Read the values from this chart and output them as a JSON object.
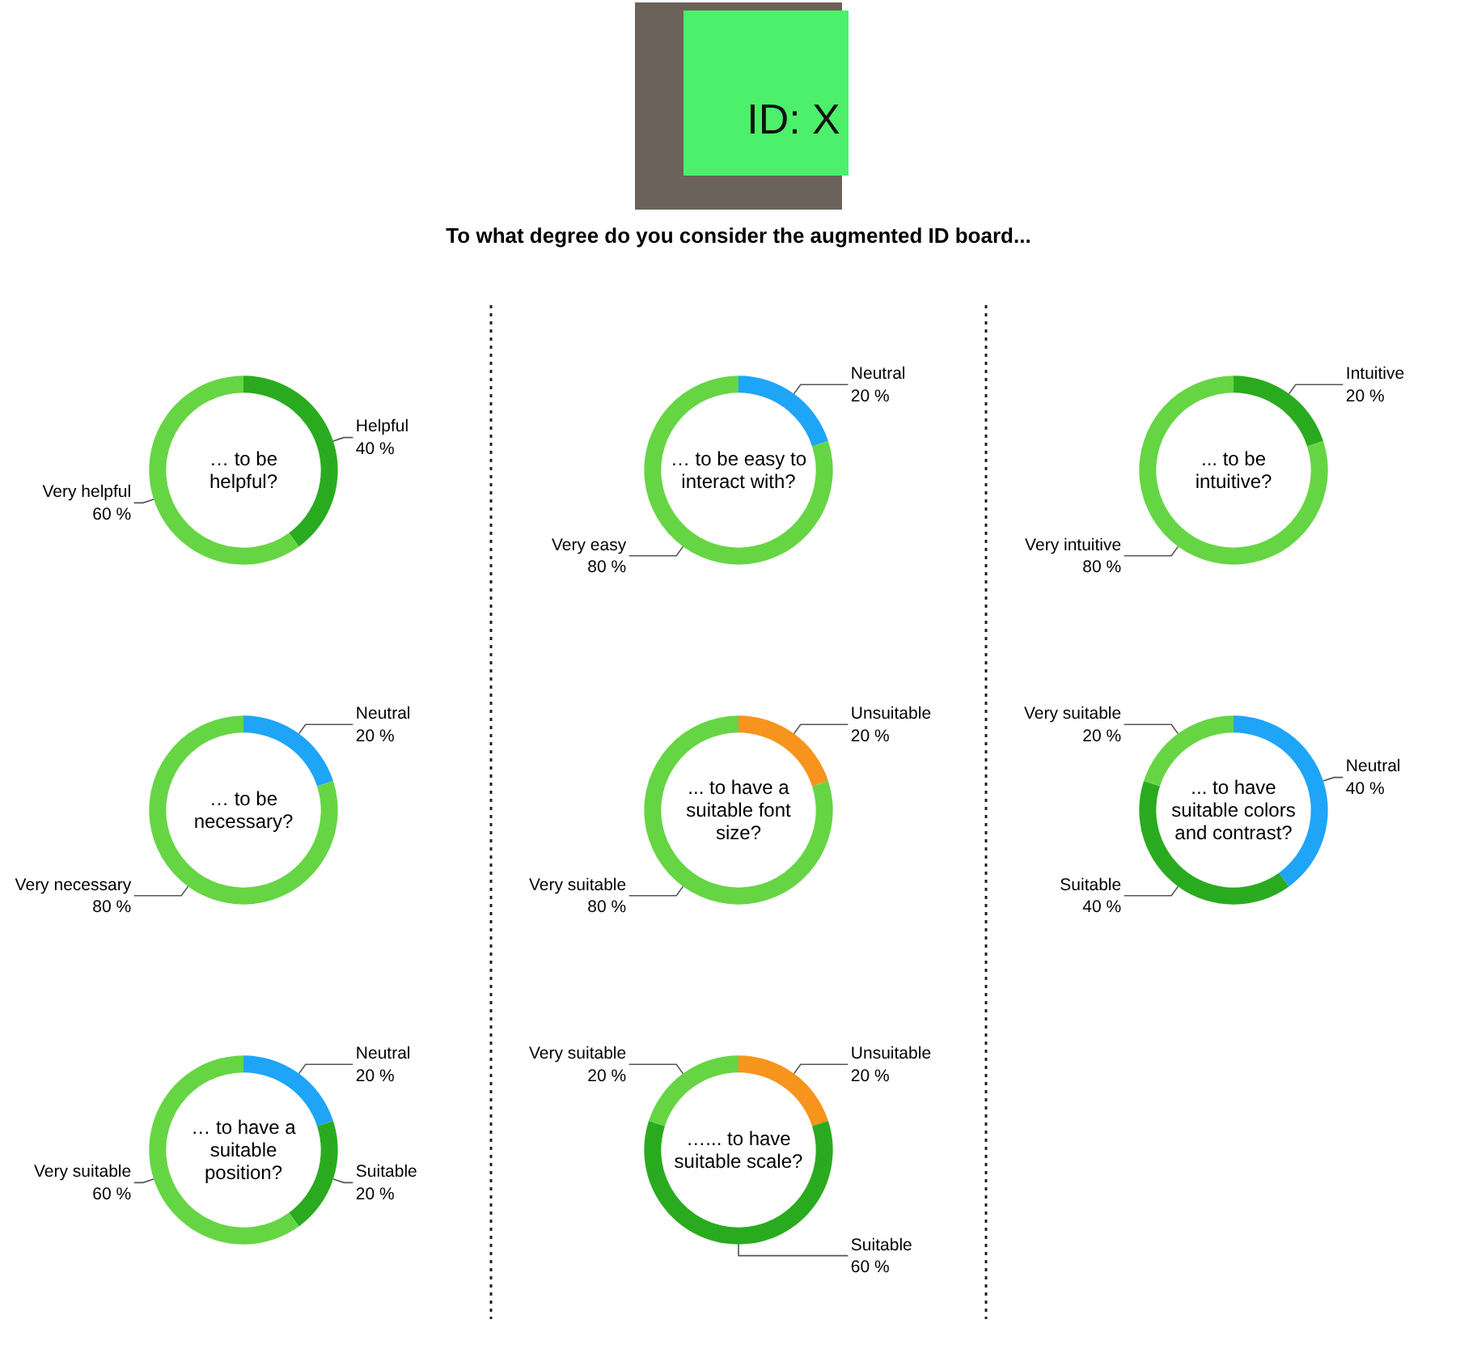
{
  "chart_data": [
    {
      "type": "other",
      "title": "To what degree do you consider the augmented ID board...",
      "annotations": [
        "ID: X"
      ]
    },
    {
      "type": "donut",
      "title": "… to be helpful?",
      "categories": [
        "Helpful",
        "Very helpful"
      ],
      "values": [
        40,
        60
      ],
      "colors": [
        "#2aab1f",
        "#66d544"
      ],
      "value_labels": [
        "40 %",
        "60 %"
      ]
    },
    {
      "type": "donut",
      "title": "… to be easy to interact with?",
      "categories": [
        "Neutral",
        "Very easy"
      ],
      "values": [
        20,
        80
      ],
      "colors": [
        "#1ea5f7",
        "#66d544"
      ],
      "value_labels": [
        "20 %",
        "80 %"
      ]
    },
    {
      "type": "donut",
      "title": "... to be intuitive?",
      "categories": [
        "Intuitive",
        "Very intuitive"
      ],
      "values": [
        20,
        80
      ],
      "colors": [
        "#2aab1f",
        "#66d544"
      ],
      "value_labels": [
        "20 %",
        "80 %"
      ]
    },
    {
      "type": "donut",
      "title": "… to be necessary?",
      "categories": [
        "Neutral",
        "Very necessary"
      ],
      "values": [
        20,
        80
      ],
      "colors": [
        "#1ea5f7",
        "#66d544"
      ],
      "value_labels": [
        "20 %",
        "80 %"
      ]
    },
    {
      "type": "donut",
      "title": "... to have a suitable font size?",
      "categories": [
        "Unsuitable",
        "Very suitable"
      ],
      "values": [
        20,
        80
      ],
      "colors": [
        "#f7941d",
        "#66d544"
      ],
      "value_labels": [
        "20 %",
        "80 %"
      ]
    },
    {
      "type": "donut",
      "title": "... to have suitable colors and contrast?",
      "categories": [
        "Neutral",
        "Suitable",
        "Very suitable"
      ],
      "values": [
        40,
        40,
        20
      ],
      "colors": [
        "#1ea5f7",
        "#2aab1f",
        "#66d544"
      ],
      "value_labels": [
        "40 %",
        "40 %",
        "20 %"
      ]
    },
    {
      "type": "donut",
      "title": "… to have a suitable position?",
      "categories": [
        "Neutral",
        "Suitable",
        "Very suitable"
      ],
      "values": [
        20,
        20,
        60
      ],
      "colors": [
        "#1ea5f7",
        "#2aab1f",
        "#66d544"
      ],
      "value_labels": [
        "20 %",
        "20 %",
        "60 %"
      ]
    },
    {
      "type": "donut",
      "title": "…... to have suitable scale?",
      "categories": [
        "Unsuitable",
        "Suitable",
        "Very suitable"
      ],
      "values": [
        20,
        60,
        20
      ],
      "colors": [
        "#f7941d",
        "#2aab1f",
        "#66d544"
      ],
      "value_labels": [
        "20 %",
        "60 %",
        "20 %"
      ]
    }
  ]
}
